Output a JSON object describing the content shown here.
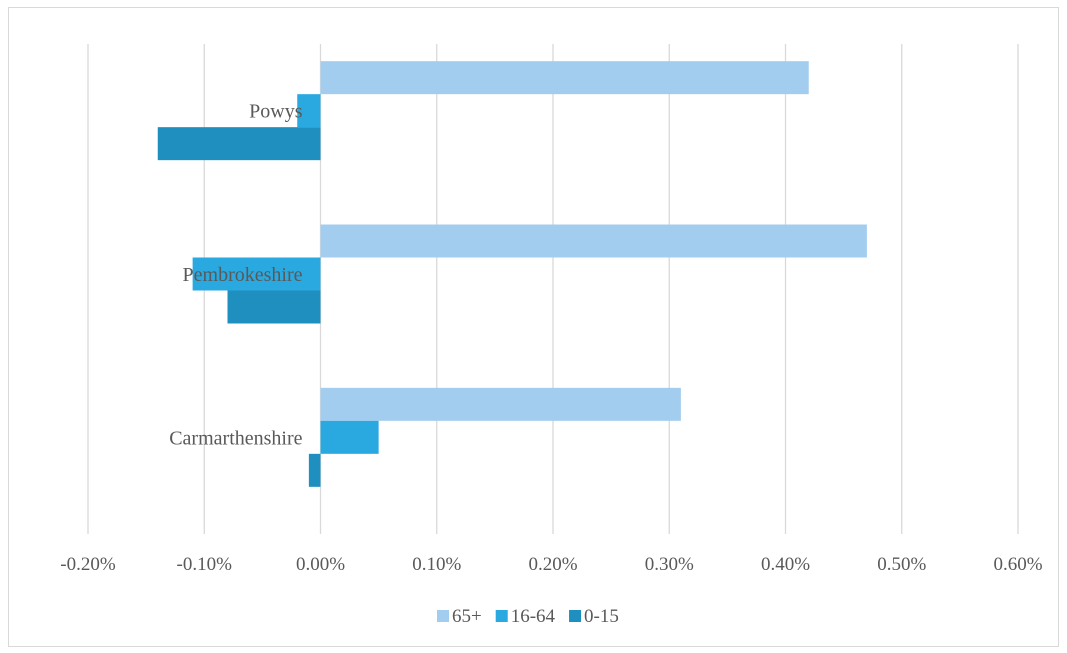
{
  "chart_data": {
    "type": "bar",
    "orientation": "horizontal",
    "categories": [
      "Powys",
      "Pembrokeshire",
      "Carmarthenshire"
    ],
    "series": [
      {
        "name": "65+",
        "values": [
          0.42,
          0.47,
          0.31
        ],
        "color": "#a3cdee"
      },
      {
        "name": "16-64",
        "values": [
          -0.02,
          -0.11,
          0.05
        ],
        "color": "#2aa9e0"
      },
      {
        "name": "0-15",
        "values": [
          -0.14,
          -0.08,
          -0.01
        ],
        "color": "#1f8fc0"
      }
    ],
    "xlim": [
      -0.2,
      0.6
    ],
    "x_ticks": [
      -0.2,
      -0.1,
      0.0,
      0.1,
      0.2,
      0.3,
      0.4,
      0.5,
      0.6
    ],
    "x_tick_labels": [
      "-0.20%",
      "-0.10%",
      "0.00%",
      "0.10%",
      "0.20%",
      "0.30%",
      "0.40%",
      "0.50%",
      "0.60%"
    ],
    "value_unit": "%",
    "grid": "vertical",
    "legend_position": "bottom",
    "title": "",
    "xlabel": "",
    "ylabel": ""
  }
}
